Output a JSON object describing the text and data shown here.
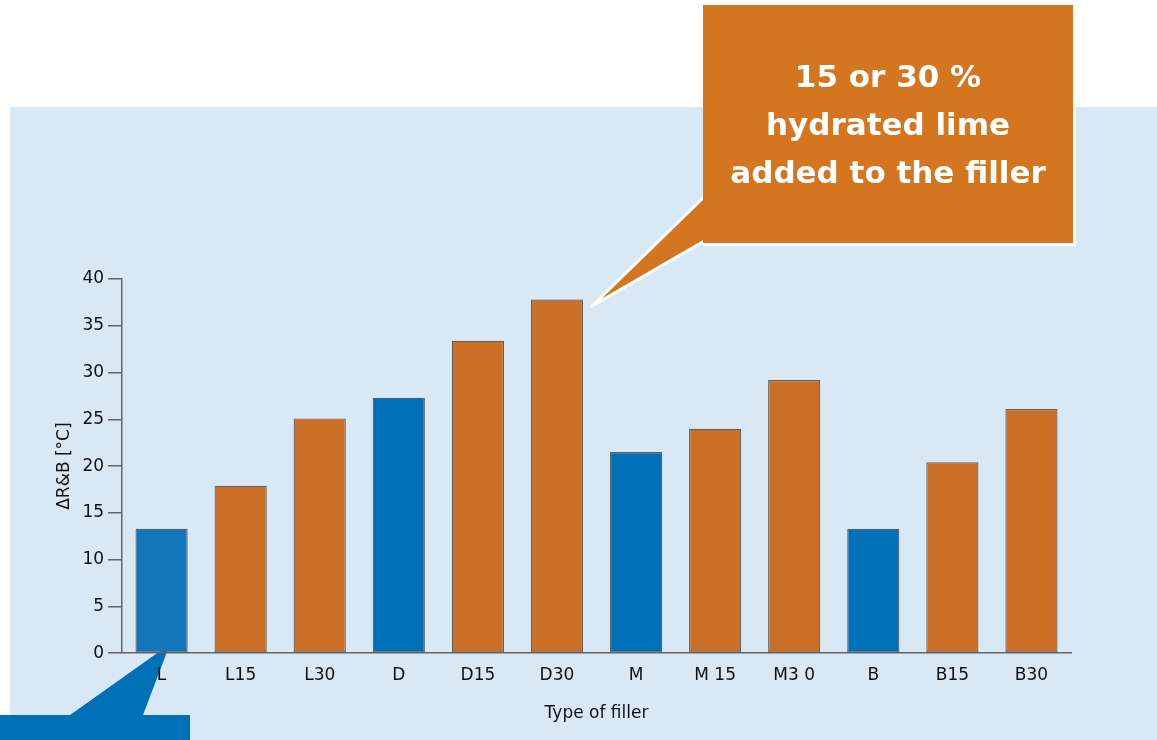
{
  "chart_data": {
    "type": "bar",
    "categories": [
      "L",
      "L15",
      "L30",
      "D",
      "D15",
      "D30",
      "M",
      "M 15",
      "M3 0",
      "B",
      "B15",
      "B30"
    ],
    "values": [
      13.3,
      17.9,
      25.1,
      27.3,
      33.4,
      37.8,
      21.5,
      24.0,
      29.2,
      13.3,
      20.4,
      26.1
    ],
    "colors": [
      "#1277ba",
      "#cb6f26",
      "#cb6f26",
      "#0070b8",
      "#cb6f26",
      "#cb6f26",
      "#0070b8",
      "#cb6f26",
      "#cb6f26",
      "#0070b8",
      "#cb6f26",
      "#cb6f26"
    ],
    "xlabel": "Type of filler",
    "ylabel": "ΔR&B [°C]",
    "ylim": [
      0,
      40
    ],
    "yticks": [
      0,
      5,
      10,
      15,
      20,
      25,
      30,
      35,
      40
    ],
    "grid": false,
    "legend": false,
    "annotations": [
      "15 or 30 % hydrated lime added to the filler"
    ]
  }
}
